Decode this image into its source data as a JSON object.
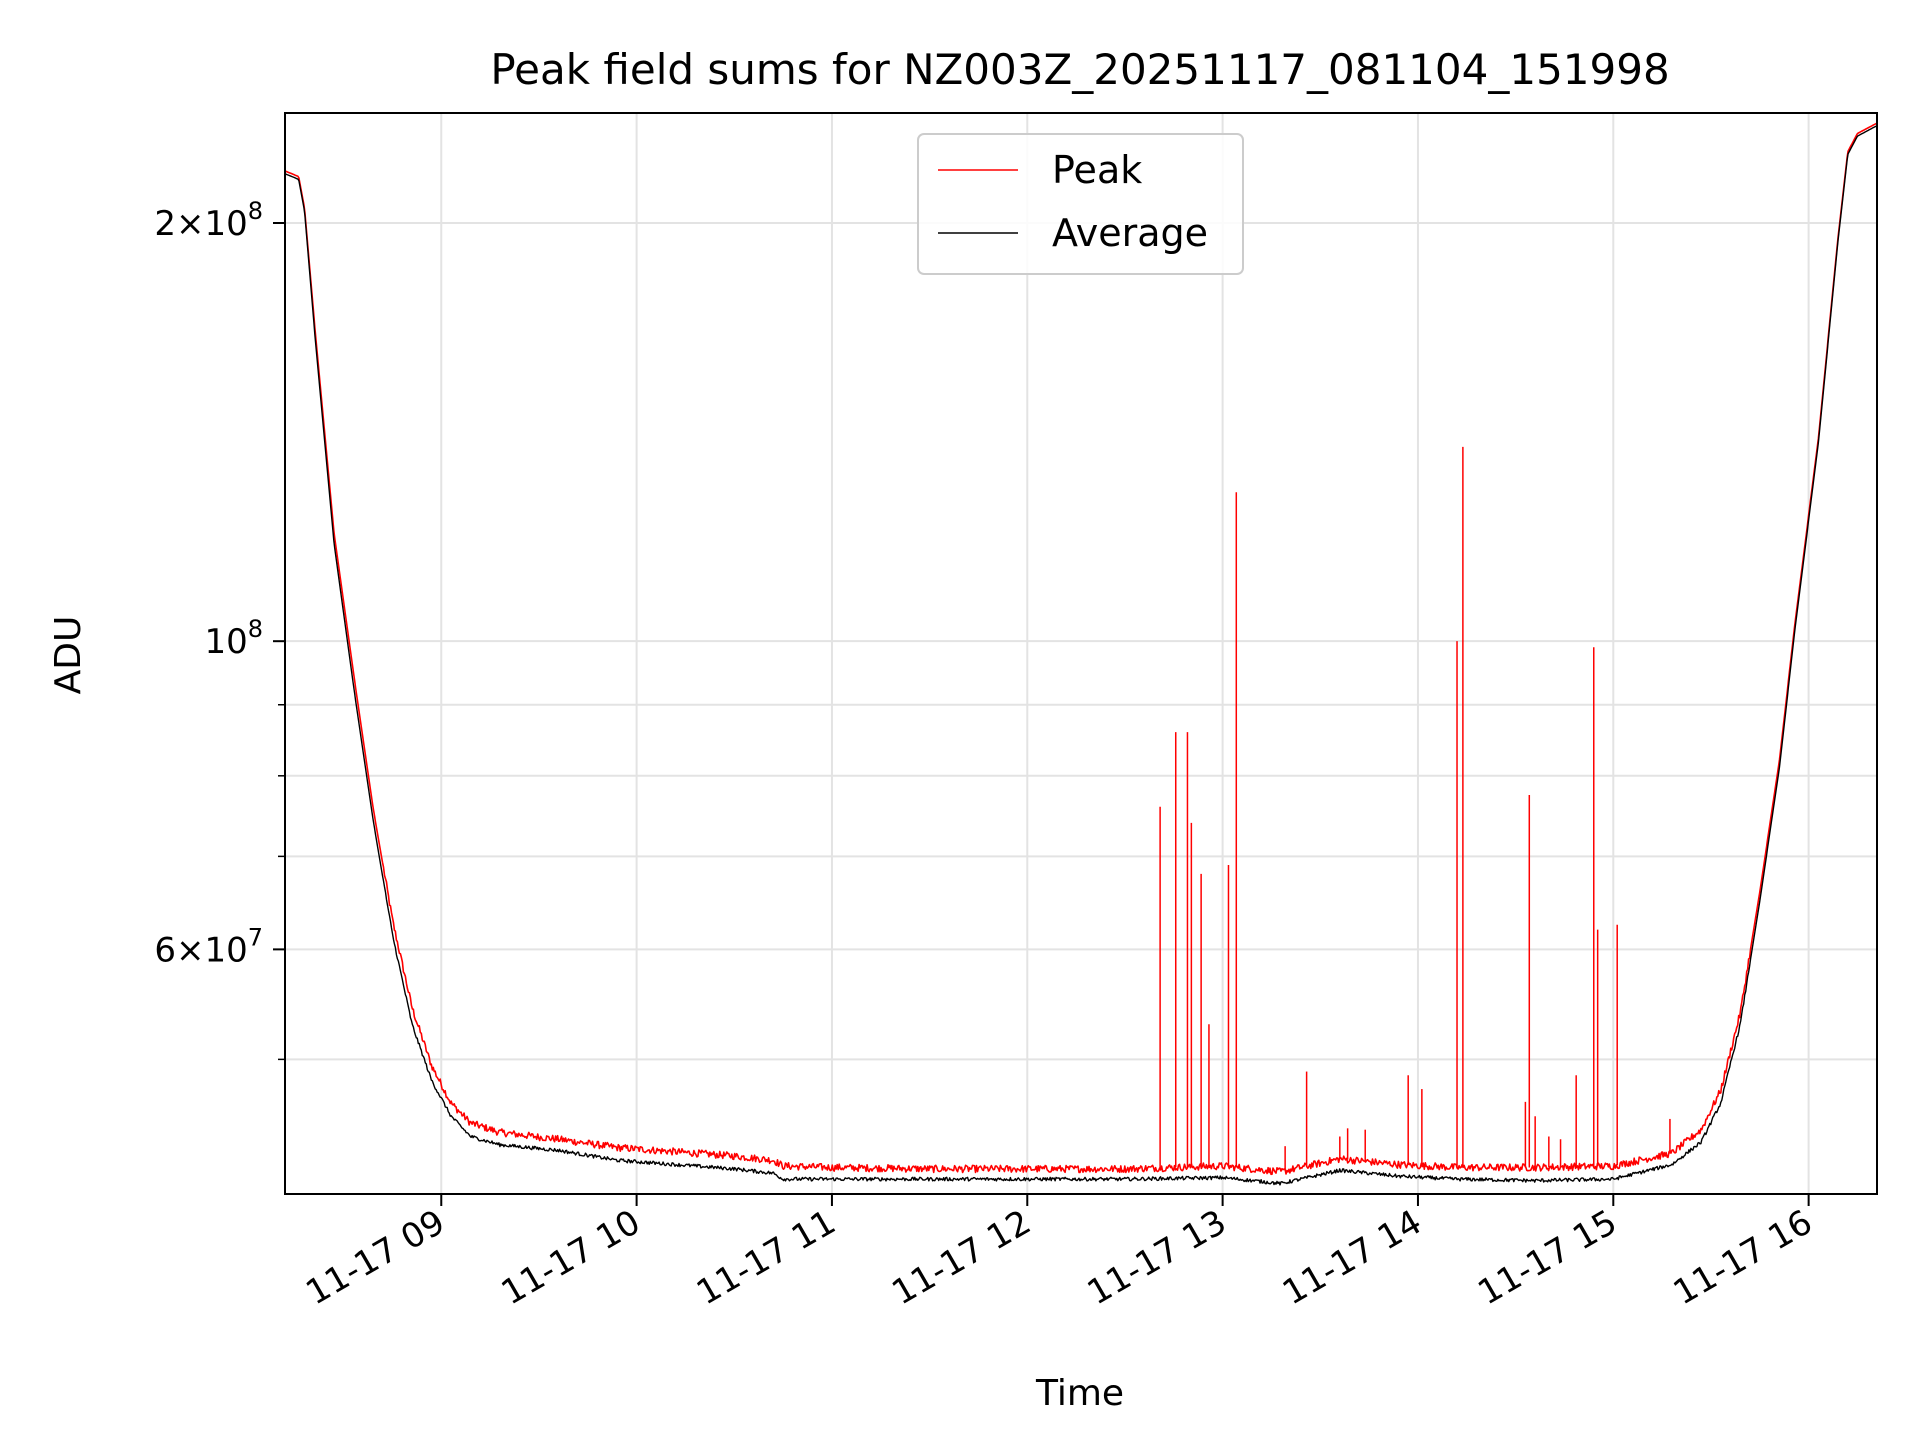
{
  "chart_data": {
    "type": "line",
    "title": "Peak field sums for NZ003Z_20251117_081104_151998",
    "xlabel": "Time",
    "ylabel": "ADU",
    "yscale": "log",
    "xlim_hours": [
      8.2,
      16.35
    ],
    "ylim": [
      40000000,
      240000000
    ],
    "grid": true,
    "legend_position": "upper center",
    "x_ticks": [
      {
        "value": 9,
        "label": "11-17 09"
      },
      {
        "value": 10,
        "label": "11-17 10"
      },
      {
        "value": 11,
        "label": "11-17 11"
      },
      {
        "value": 12,
        "label": "11-17 12"
      },
      {
        "value": 13,
        "label": "11-17 13"
      },
      {
        "value": 14,
        "label": "11-17 14"
      },
      {
        "value": 15,
        "label": "11-17 15"
      },
      {
        "value": 16,
        "label": "11-17 16"
      }
    ],
    "y_major_ticks": [
      {
        "value": 60000000,
        "base": "6",
        "exp": "7"
      },
      {
        "value": 100000000,
        "base": "",
        "exp": "8"
      },
      {
        "value": 200000000,
        "base": "2",
        "exp": "8"
      }
    ],
    "y_minor_ticks": [
      50000000,
      70000000,
      80000000,
      90000000
    ],
    "series": [
      {
        "name": "Peak",
        "color": "#ff0000",
        "points": [
          [
            8.2,
            218000000
          ],
          [
            8.27,
            216000000
          ],
          [
            8.3,
            205000000
          ],
          [
            8.35,
            170000000
          ],
          [
            8.45,
            120000000
          ],
          [
            8.55,
            95000000
          ],
          [
            8.65,
            76000000
          ],
          [
            8.75,
            63000000
          ],
          [
            8.85,
            54500000
          ],
          [
            8.95,
            49500000
          ],
          [
            9.05,
            46500000
          ],
          [
            9.15,
            45000000
          ],
          [
            9.3,
            44300000
          ],
          [
            9.6,
            43800000
          ],
          [
            9.9,
            43200000
          ],
          [
            10.2,
            42900000
          ],
          [
            10.5,
            42600000
          ],
          [
            10.7,
            42300000
          ],
          [
            10.75,
            41900000
          ],
          [
            11.0,
            41800000
          ],
          [
            11.5,
            41700000
          ],
          [
            12.0,
            41700000
          ],
          [
            12.5,
            41700000
          ],
          [
            13.0,
            41900000
          ],
          [
            13.3,
            41500000
          ],
          [
            13.6,
            42400000
          ],
          [
            13.9,
            42000000
          ],
          [
            14.2,
            41800000
          ],
          [
            14.6,
            41800000
          ],
          [
            15.0,
            41900000
          ],
          [
            15.3,
            42800000
          ],
          [
            15.45,
            44500000
          ],
          [
            15.55,
            47500000
          ],
          [
            15.65,
            54000000
          ],
          [
            15.75,
            66000000
          ],
          [
            15.85,
            82000000
          ],
          [
            15.93,
            103000000
          ],
          [
            16.05,
            140000000
          ],
          [
            16.15,
            195000000
          ],
          [
            16.2,
            225000000
          ],
          [
            16.25,
            232000000
          ],
          [
            16.35,
            236000000
          ]
        ],
        "spikes": [
          [
            12.68,
            76000000
          ],
          [
            12.76,
            86000000
          ],
          [
            12.82,
            86000000
          ],
          [
            12.84,
            74000000
          ],
          [
            12.89,
            68000000
          ],
          [
            12.93,
            53000000
          ],
          [
            13.03,
            69000000
          ],
          [
            13.07,
            128000000
          ],
          [
            13.32,
            43300000
          ],
          [
            13.43,
            49000000
          ],
          [
            13.6,
            44000000
          ],
          [
            13.64,
            44600000
          ],
          [
            13.73,
            44500000
          ],
          [
            13.95,
            48700000
          ],
          [
            14.02,
            47600000
          ],
          [
            14.2,
            100000000
          ],
          [
            14.23,
            138000000
          ],
          [
            14.55,
            46600000
          ],
          [
            14.57,
            77500000
          ],
          [
            14.6,
            45500000
          ],
          [
            14.67,
            44000000
          ],
          [
            14.73,
            43800000
          ],
          [
            14.81,
            48700000
          ],
          [
            14.9,
            99000000
          ],
          [
            14.92,
            62000000
          ],
          [
            15.02,
            62500000
          ],
          [
            15.29,
            45300000
          ]
        ]
      },
      {
        "name": "Average",
        "color": "#000000",
        "points": [
          [
            8.2,
            217000000
          ],
          [
            8.27,
            215000000
          ],
          [
            8.3,
            204000000
          ],
          [
            8.35,
            168000000
          ],
          [
            8.45,
            118000000
          ],
          [
            8.55,
            93000000
          ],
          [
            8.65,
            74500000
          ],
          [
            8.75,
            61500000
          ],
          [
            8.85,
            53000000
          ],
          [
            8.95,
            48300000
          ],
          [
            9.05,
            45500000
          ],
          [
            9.15,
            44000000
          ],
          [
            9.3,
            43400000
          ],
          [
            9.6,
            43000000
          ],
          [
            9.9,
            42300000
          ],
          [
            10.2,
            42000000
          ],
          [
            10.5,
            41700000
          ],
          [
            10.7,
            41400000
          ],
          [
            10.75,
            41000000
          ],
          [
            11.0,
            41000000
          ],
          [
            11.5,
            41000000
          ],
          [
            12.0,
            41000000
          ],
          [
            12.5,
            41000000
          ],
          [
            13.0,
            41100000
          ],
          [
            13.3,
            40700000
          ],
          [
            13.6,
            41600000
          ],
          [
            13.9,
            41200000
          ],
          [
            14.2,
            41000000
          ],
          [
            14.6,
            40900000
          ],
          [
            15.0,
            41000000
          ],
          [
            15.3,
            42000000
          ],
          [
            15.45,
            43600000
          ],
          [
            15.55,
            46500000
          ],
          [
            15.65,
            53000000
          ],
          [
            15.75,
            65000000
          ],
          [
            15.85,
            81000000
          ],
          [
            15.93,
            102000000
          ],
          [
            16.05,
            139000000
          ],
          [
            16.15,
            194000000
          ],
          [
            16.2,
            224000000
          ],
          [
            16.25,
            231000000
          ],
          [
            16.35,
            235000000
          ]
        ]
      }
    ]
  }
}
